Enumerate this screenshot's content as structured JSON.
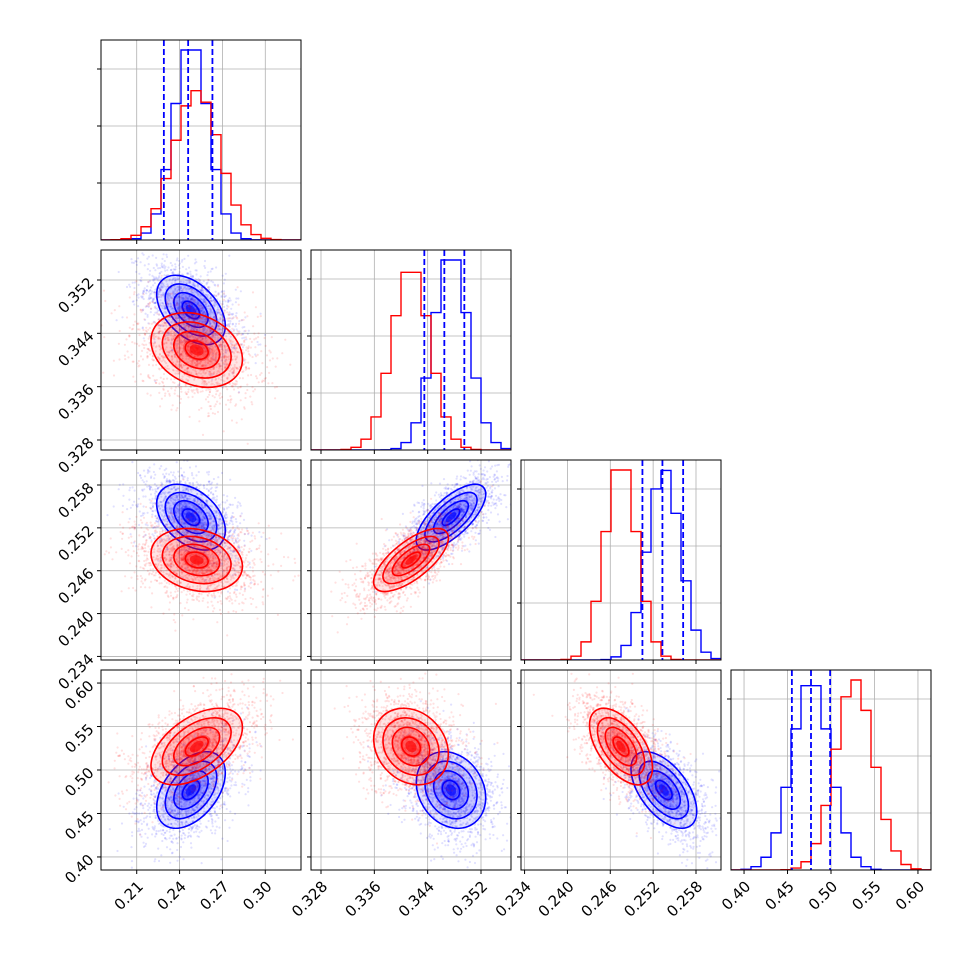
{
  "chart_data": {
    "type": "corner",
    "parameters": 4,
    "grid": true,
    "colors": {
      "series_a": "#0000ff",
      "series_b": "#ff0000"
    },
    "axes": [
      {
        "range": [
          0.185,
          0.325
        ],
        "ticks": [
          0.21,
          0.24,
          0.27,
          0.3
        ],
        "tick_labels": [
          "0.21",
          "0.24",
          "0.27",
          "0.30"
        ]
      },
      {
        "range": [
          0.3265,
          0.3565
        ],
        "ticks": [
          0.328,
          0.336,
          0.344,
          0.352
        ],
        "tick_labels": [
          "0.328",
          "0.336",
          "0.344",
          "0.352"
        ]
      },
      {
        "range": [
          0.2335,
          0.2615
        ],
        "ticks": [
          0.234,
          0.24,
          0.246,
          0.252,
          0.258
        ],
        "tick_labels": [
          "0.234",
          "0.240",
          "0.246",
          "0.252",
          "0.258"
        ]
      },
      {
        "range": [
          0.385,
          0.615
        ],
        "ticks": [
          0.4,
          0.45,
          0.5,
          0.55,
          0.6
        ],
        "tick_labels": [
          "0.40",
          "0.45",
          "0.50",
          "0.55",
          "0.60"
        ]
      }
    ],
    "series": [
      {
        "color": "#0000ff",
        "mean": [
          0.248,
          0.3475,
          0.2535,
          0.477
        ],
        "sd": [
          0.012,
          0.0026,
          0.0023,
          0.022
        ],
        "corr": {
          "0-1": -0.45,
          "0-2": -0.4,
          "0-3": 0.45,
          "1-2": 0.7,
          "1-3": -0.2,
          "2-3": -0.55
        },
        "quantiles": [
          [
            0.229,
            0.246,
            0.263
          ],
          [
            0.3435,
            0.3465,
            0.3495
          ],
          [
            0.2505,
            0.2533,
            0.2562
          ],
          [
            0.455,
            0.477,
            0.499
          ]
        ]
      },
      {
        "color": "#ff0000",
        "mean": [
          0.252,
          0.3415,
          0.2475,
          0.527
        ],
        "sd": [
          0.016,
          0.0028,
          0.0022,
          0.022
        ],
        "corr": {
          "0-1": -0.25,
          "0-2": -0.2,
          "0-3": 0.5,
          "1-2": 0.7,
          "1-3": -0.2,
          "2-3": -0.55
        }
      }
    ]
  }
}
